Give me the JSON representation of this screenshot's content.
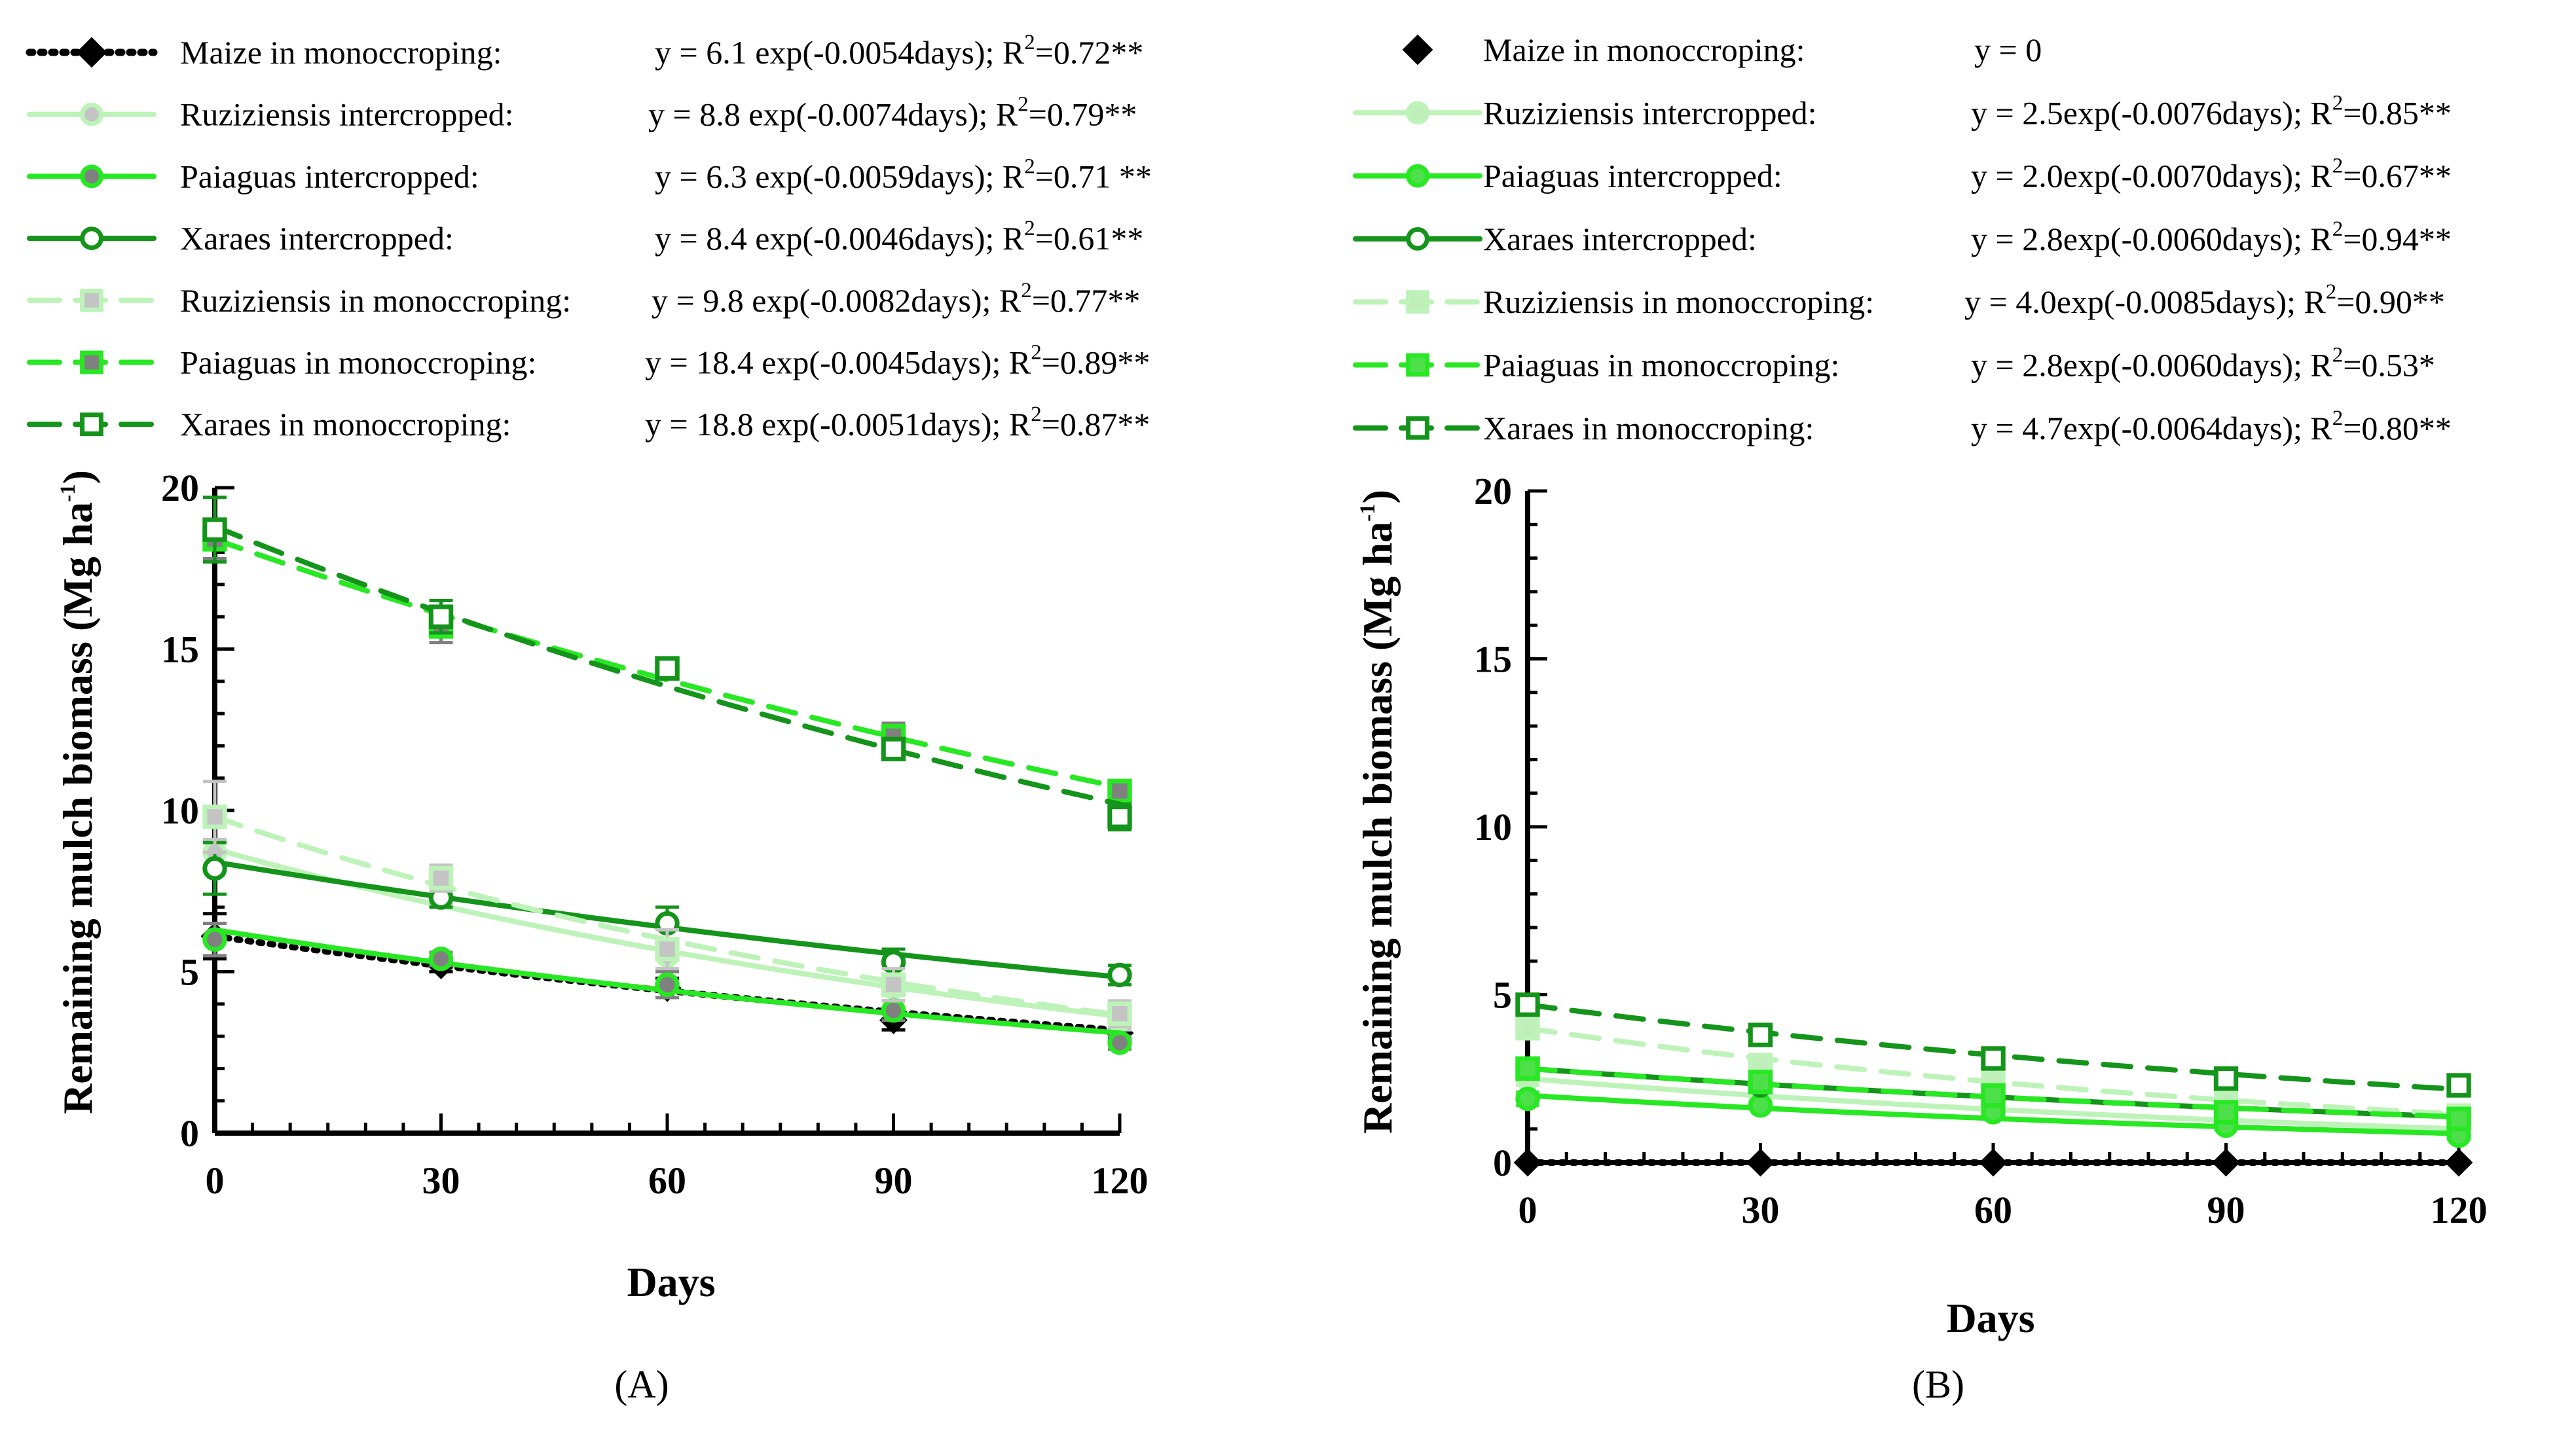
{
  "styles": {
    "maize": {
      "color": "#000000",
      "dash": "dotted",
      "marker": "diamond",
      "fill": "#000000"
    },
    "ruz_int": {
      "color": "#bdf3b8",
      "dash": "solid",
      "marker": "circle",
      "fill": "#c4c4c4",
      "fill_b": "#bfeebb"
    },
    "pai_int": {
      "color": "#27e822",
      "dash": "solid",
      "marker": "circle",
      "fill": "#808080",
      "fill_b": "#4ee04a"
    },
    "xar_int": {
      "color": "#14941a",
      "dash": "solid",
      "marker": "circle",
      "fill": "#ffffff"
    },
    "ruz_mono": {
      "color": "#bdf3b8",
      "dash": "dashed",
      "marker": "square",
      "fill": "#c4c4c4",
      "fill_b": "#bfeebb"
    },
    "pai_mono": {
      "color": "#27e822",
      "dash": "dashed",
      "marker": "square",
      "fill": "#808080",
      "fill_b": "#4ee04a"
    },
    "xar_mono": {
      "color": "#14941a",
      "dash": "dashed",
      "marker": "square",
      "fill": "#ffffff"
    }
  },
  "chart_data": [
    {
      "panel": "(A)",
      "type": "line",
      "xlabel": "Days",
      "ylabel": "Remaining mulch biomass (Mg ha",
      "ylabel_sup": "-1",
      "ylabel_close": ")",
      "xlim": [
        0,
        120
      ],
      "ylim": [
        0,
        20
      ],
      "x_ticks": [
        0,
        30,
        60,
        90,
        120
      ],
      "y_ticks": [
        0,
        5,
        10,
        15,
        20
      ],
      "x": [
        0,
        30,
        60,
        90,
        120
      ],
      "series": [
        {
          "key": "maize",
          "name": "Maize in monoccroping:",
          "equation": "y =   6.1 exp(-0.0054days); R",
          "r2": "=0.72**",
          "a": 6.1,
          "k": 0.0054,
          "values": [
            6.1,
            5.2,
            4.5,
            3.5,
            3.1
          ],
          "error": [
            0.7,
            0.2,
            0.3,
            0.3,
            0.2
          ]
        },
        {
          "key": "ruz_int",
          "name": "Ruziziensis intercropped:",
          "equation": "y =  8.8 exp(-0.0074days); R",
          "r2": "=0.79**",
          "a": 8.8,
          "k": 0.0074,
          "values": [
            8.7,
            7.4,
            5.5,
            4.5,
            3.5
          ],
          "error": [
            0.4,
            0.3,
            0.4,
            0.4,
            0.3
          ]
        },
        {
          "key": "pai_int",
          "name": "Paiaguas intercropped:",
          "equation": "y =  6.3 exp(-0.0059days); R",
          "r2": "=0.71 **",
          "a": 6.3,
          "k": 0.0059,
          "values": [
            6.0,
            5.4,
            4.6,
            3.8,
            2.8
          ],
          "error": [
            0.5,
            0.2,
            0.4,
            0.3,
            0.2
          ]
        },
        {
          "key": "xar_int",
          "name": "Xaraes intercropped:",
          "equation": "y =  8.4 exp(-0.0046days); R",
          "r2": "=0.61**",
          "a": 8.4,
          "k": 0.0046,
          "values": [
            8.2,
            7.3,
            6.5,
            5.3,
            4.9
          ],
          "error": [
            0.8,
            0.3,
            0.5,
            0.4,
            0.3
          ]
        },
        {
          "key": "ruz_mono",
          "name": "Ruziziensis in monoccroping:",
          "equation": "y =  9.8 exp(-0.0082days); R",
          "r2": "=0.77**",
          "a": 9.8,
          "k": 0.0082,
          "values": [
            9.8,
            7.9,
            5.7,
            4.6,
            3.7
          ],
          "error": [
            1.1,
            0.4,
            0.6,
            0.5,
            0.4
          ]
        },
        {
          "key": "pai_mono",
          "name": "Paiaguas in monoccroping:",
          "equation": "y = 18.4 exp(-0.0045days); R",
          "r2": "=0.89**",
          "a": 18.4,
          "k": 0.0045,
          "values": [
            18.4,
            15.7,
            14.4,
            12.3,
            10.6
          ],
          "error": [
            0.6,
            0.5,
            0.3,
            0.4,
            0.3
          ]
        },
        {
          "key": "xar_mono",
          "name": "Xaraes in monoccroping:",
          "equation": "y = 18.8 exp(-0.0051days); R",
          "r2": "=0.87**",
          "a": 18.8,
          "k": 0.0051,
          "values": [
            18.7,
            16.0,
            14.4,
            11.9,
            9.8
          ],
          "error": [
            1.0,
            0.5,
            0.3,
            0.3,
            0.4
          ]
        }
      ]
    },
    {
      "panel": "(B)",
      "type": "line",
      "xlabel": "Days",
      "ylabel": "Remaining mulch biomass (Mg ha",
      "ylabel_sup": "-1",
      "ylabel_close": ")",
      "xlim": [
        0,
        120
      ],
      "ylim": [
        0,
        20
      ],
      "x_ticks": [
        0,
        30,
        60,
        90,
        120
      ],
      "y_ticks": [
        0,
        5,
        10,
        15,
        20
      ],
      "x": [
        0,
        30,
        60,
        90,
        120
      ],
      "series": [
        {
          "key": "maize",
          "name": "Maize in monoccroping:",
          "equation": "y = 0",
          "r2": "",
          "a": 0,
          "k": 0,
          "values": [
            0,
            0,
            0,
            0,
            0
          ],
          "error": [
            0,
            0,
            0,
            0,
            0
          ]
        },
        {
          "key": "ruz_int",
          "name": "Ruziziensis intercropped:",
          "equation": "y = 2.5exp(-0.0076days); R",
          "r2": "=0.85**",
          "a": 2.5,
          "k": 0.0076,
          "values": [
            2.5,
            2.0,
            1.6,
            1.2,
            1.0
          ],
          "error": [
            0.2,
            0.1,
            0.1,
            0.1,
            0.1
          ]
        },
        {
          "key": "pai_int",
          "name": "Paiaguas intercropped:",
          "equation": "y = 2.0exp(-0.0070days); R",
          "r2": "=0.67**",
          "a": 2.0,
          "k": 0.007,
          "values": [
            1.9,
            1.7,
            1.5,
            1.1,
            0.8
          ],
          "error": [
            0.2,
            0.1,
            0.1,
            0.1,
            0.1
          ]
        },
        {
          "key": "xar_int",
          "name": "Xaraes intercropped:",
          "equation": "y = 2.8exp(-0.0060days); R",
          "r2": "=0.94**",
          "a": 2.8,
          "k": 0.006,
          "values": [
            2.8,
            2.3,
            2.0,
            1.7,
            1.3
          ],
          "error": [
            0.2,
            0.1,
            0.1,
            0.1,
            0.1
          ]
        },
        {
          "key": "ruz_mono",
          "name": "Ruziziensis in monoccroping:",
          "equation": "y = 4.0exp(-0.0085days); R",
          "r2": "=0.90**",
          "a": 4.0,
          "k": 0.0085,
          "values": [
            4.0,
            2.9,
            2.4,
            1.8,
            1.4
          ],
          "error": [
            0.2,
            0.1,
            0.1,
            0.1,
            0.1
          ]
        },
        {
          "key": "pai_mono",
          "name": "Paiaguas in monoccroping:",
          "equation": "y = 2.8exp(-0.0060days); R",
          "r2": "=0.53*",
          "a": 2.8,
          "k": 0.006,
          "values": [
            2.8,
            2.4,
            2.0,
            1.5,
            1.3
          ],
          "error": [
            0.3,
            0.1,
            0.1,
            0.1,
            0.1
          ]
        },
        {
          "key": "xar_mono",
          "name": "Xaraes in monoccroping:",
          "equation": "y = 4.7exp(-0.0064days); R",
          "r2": "=0.80**",
          "a": 4.7,
          "k": 0.0064,
          "values": [
            4.7,
            3.8,
            3.1,
            2.5,
            2.3
          ],
          "error": [
            0.2,
            0.1,
            0.1,
            0.1,
            0.1
          ]
        }
      ]
    }
  ]
}
